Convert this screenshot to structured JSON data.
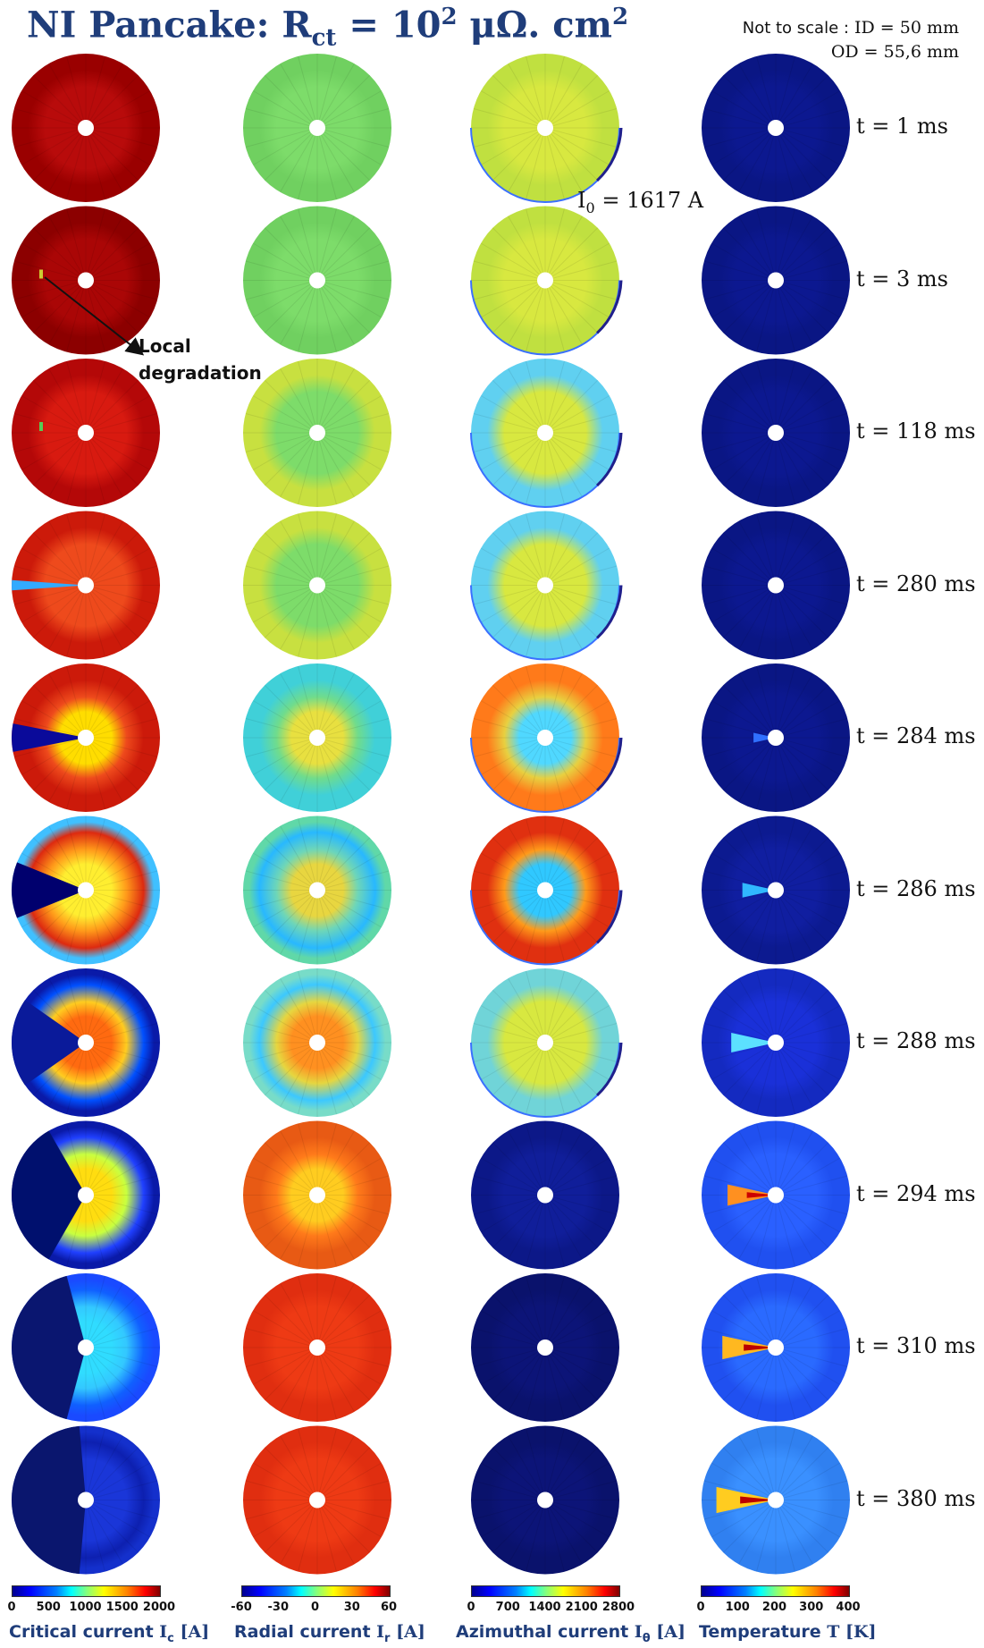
{
  "title": {
    "prefix": "NI Pancake:",
    "symbol": "R",
    "symbol_sub": "ct",
    "equals": "=",
    "value_base": "10",
    "value_exp": "2",
    "unit": "μΩ. cm",
    "unit_exp": "2"
  },
  "scale_note": {
    "line1_label": "Not to scale :",
    "line1_value": "ID = 50 mm",
    "line2_value": "OD = 55,6 mm"
  },
  "operating_current": {
    "symbol": "I",
    "sub": "0",
    "text": "= 1617 A"
  },
  "annotation": {
    "line1": "Local",
    "line2": "degradation"
  },
  "times": [
    "t = 1 ms",
    "t = 3 ms",
    "t = 118 ms",
    "t = 280 ms",
    "t = 284 ms",
    "t = 286 ms",
    "t = 288 ms",
    "t = 294 ms",
    "t = 310 ms",
    "t = 380 ms"
  ],
  "columns": [
    {
      "label_text": "Critical current",
      "symbol": "I",
      "symbol_sub": "c",
      "unit": "[A]",
      "ticks": [
        "0",
        "500",
        "1000",
        "1500",
        "2000"
      ],
      "range": [
        0,
        2000
      ],
      "colormap": "jet"
    },
    {
      "label_text": "Radial current",
      "symbol": "I",
      "symbol_sub": "r",
      "unit": "[A]",
      "ticks": [
        "-60",
        "-30",
        "0",
        "30",
        "60"
      ],
      "range": [
        -60,
        60
      ],
      "colormap": "jet"
    },
    {
      "label_text": "Azimuthal current",
      "symbol": "I",
      "symbol_sub": "θ",
      "unit": "[A]",
      "ticks": [
        "0",
        "700",
        "1400",
        "2100",
        "2800"
      ],
      "range": [
        0,
        2800
      ],
      "colormap": "jet"
    },
    {
      "label_text": "Temperature",
      "symbol": "T",
      "symbol_sub": "",
      "unit": "[K]",
      "ticks": [
        "0",
        "100",
        "200",
        "300",
        "400"
      ],
      "range": [
        0,
        400
      ],
      "colormap": "jet"
    }
  ],
  "disks": [
    [
      {
        "base": "#b80b0b",
        "ring": "#9a0000"
      },
      {
        "base": "#aa0606",
        "ring": "#8c0000",
        "spot": "#cccc33"
      },
      {
        "base": "#d81a10",
        "ring": "#b40808",
        "spot": "#55cc55"
      },
      {
        "base": "#ee4a1c",
        "ring": "#cc1a0a",
        "wedge": "#33aaff",
        "wedgeArc": 8
      },
      {
        "base": "#ee4a1c",
        "ring": "#cc1a0a",
        "wedge": "#0a0a9a",
        "wedgeArc": 22,
        "halo": "#ffdd00"
      },
      {
        "base": "#ff9a1a",
        "ring": "#dd2a10",
        "wedge": "#00006e",
        "wedgeArc": 44,
        "halo": "#ffee30",
        "outer": "#40c0ff"
      },
      {
        "base": "#ffcc20",
        "ring": "#0050ff",
        "wedge": "#0a1a9a",
        "wedgeArc": 70,
        "halo": "#ff6a10",
        "outer": "#0a1aa8"
      },
      {
        "base": "#c8ff40",
        "ring": "#2040ff",
        "wedge": "#00106e",
        "wedgeArc": 120,
        "halo": "#ffdd10",
        "outer": "#0a1aa8"
      },
      {
        "base": "#33c8ff",
        "ring": "#1060ff",
        "wedge": "#0a1670",
        "wedgeArc": 150,
        "halo": "#30dcff",
        "outer": "#1a4aff"
      },
      {
        "base": "#1a36d8",
        "ring": "#0d20b0",
        "wedge": "#0a166e",
        "wedgeArc": 170,
        "outer": "#1430cc"
      }
    ],
    [
      {
        "base": "#7ddc6a",
        "ring": "#70d060"
      },
      {
        "base": "#7ddc6a",
        "ring": "#70d060"
      },
      {
        "base": "#7ddc6a",
        "ring": "#c8e040"
      },
      {
        "base": "#7ddc6a",
        "ring": "#c8e040"
      },
      {
        "base": "#70dc8c",
        "ring": "#40d0d8",
        "halo": "#e8e040"
      },
      {
        "base": "#6ed6b8",
        "ring": "#28b8ff",
        "halo": "#e8d640",
        "outer": "#60d8a8"
      },
      {
        "base": "#e6d640",
        "ring": "#3cc8ff",
        "halo": "#ff9020",
        "outer": "#78dcc8"
      },
      {
        "base": "#ff7a1a",
        "ring": "#e85a14",
        "halo": "#ffcc20"
      },
      {
        "base": "#ee3a14",
        "ring": "#e02e10"
      },
      {
        "base": "#ee3a14",
        "ring": "#e02e10"
      }
    ],
    [
      {
        "base": "#d8e840",
        "ring": "#c0e040",
        "edge": "#20208c"
      },
      {
        "base": "#d8e840",
        "ring": "#c0e040",
        "edge": "#20208c"
      },
      {
        "base": "#d8e840",
        "ring": "#60d0f0",
        "edge": "#20208c"
      },
      {
        "base": "#d8e840",
        "ring": "#60d0f0",
        "edge": "#20208c"
      },
      {
        "base": "#e8d040",
        "ring": "#ff7a1a",
        "halo": "#50d8ff",
        "edge": "#20208c"
      },
      {
        "base": "#ff9a1a",
        "ring": "#e03010",
        "halo": "#30c8ff",
        "edge": "#20208c"
      },
      {
        "base": "#d8e840",
        "ring": "#70d4d8",
        "edge": "#20208c"
      },
      {
        "base": "#101e9a",
        "ring": "#0c1888"
      },
      {
        "base": "#0c1478",
        "ring": "#0a126c"
      },
      {
        "base": "#0c1478",
        "ring": "#0a126c"
      }
    ],
    [
      {
        "base": "#0c1890",
        "ring": "#0a1684"
      },
      {
        "base": "#0c1890",
        "ring": "#0a1684"
      },
      {
        "base": "#0c1890",
        "ring": "#0a1684"
      },
      {
        "base": "#0c1890",
        "ring": "#0a1684"
      },
      {
        "base": "#0c1890",
        "ring": "#0a1684",
        "plume": "#3070ff",
        "plumeLen": 0.3
      },
      {
        "base": "#101ea0",
        "ring": "#0c1a90",
        "plume": "#30b8ff",
        "plumeLen": 0.45
      },
      {
        "base": "#1a30d8",
        "ring": "#142ac0",
        "plume": "#5ce0ff",
        "plumeLen": 0.6
      },
      {
        "base": "#2a60ff",
        "ring": "#2050f0",
        "plume": "#ff9020",
        "plumeLen": 0.65,
        "core": "#cc0000"
      },
      {
        "base": "#2a6aff",
        "ring": "#2050f0",
        "plume": "#ffb820",
        "plumeLen": 0.72,
        "core": "#bb0000"
      },
      {
        "base": "#3a90ff",
        "ring": "#3080f0",
        "plume": "#ffcc20",
        "plumeLen": 0.8,
        "core": "#bb0000"
      }
    ]
  ]
}
